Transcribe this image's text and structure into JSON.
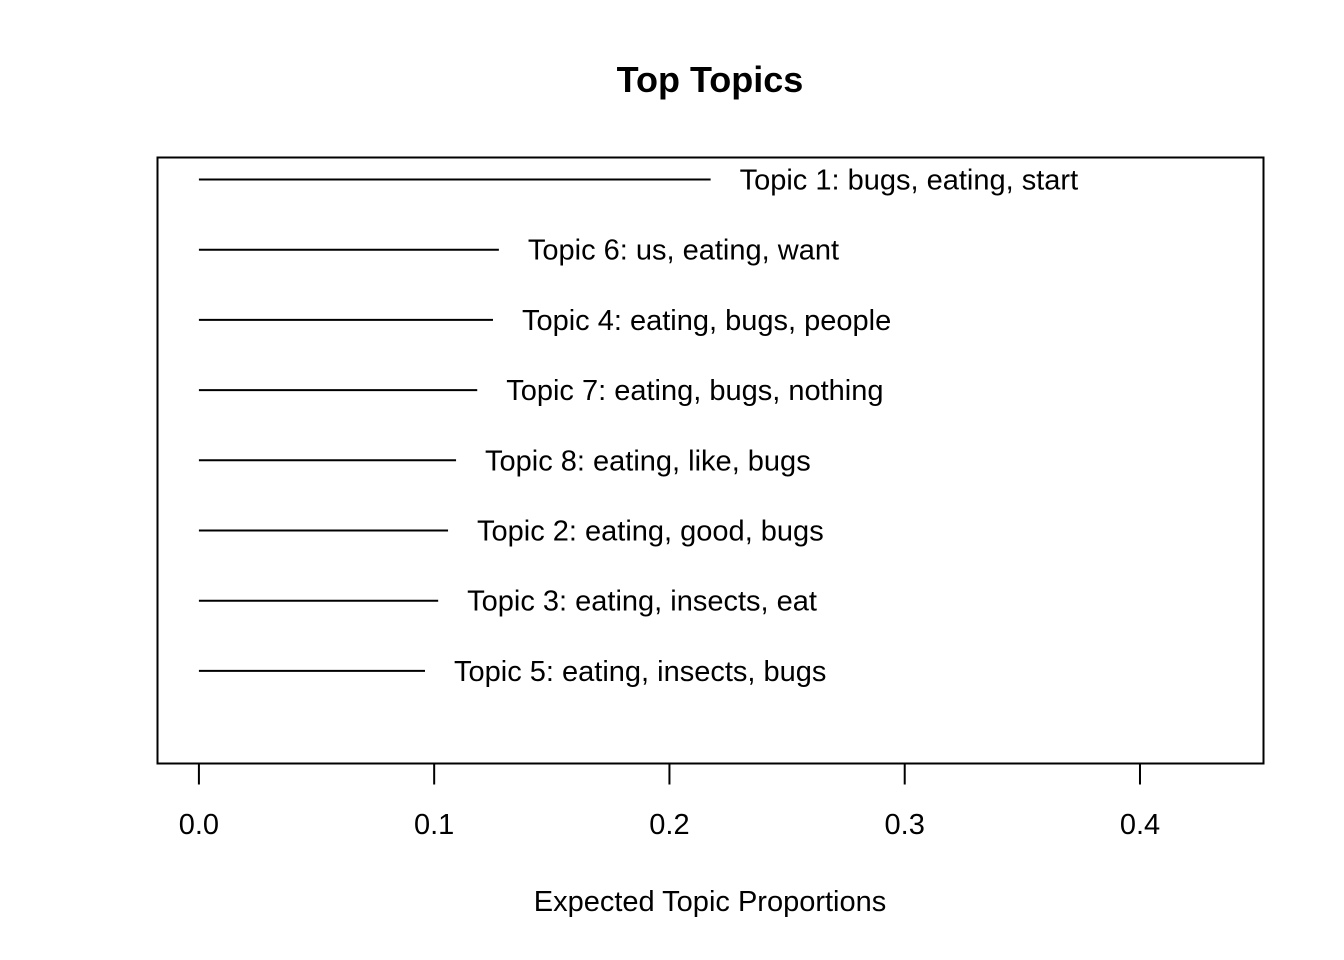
{
  "chart_data": {
    "type": "bar",
    "title": "Top Topics",
    "xlabel": "Expected Topic Proportions",
    "ylabel": "",
    "xlim": [
      -0.0176,
      0.4525
    ],
    "grid": false,
    "x_ticks": [
      "0.0",
      "0.1",
      "0.2",
      "0.3",
      "0.4"
    ],
    "categories": [
      "Topic 1: bugs, eating, start",
      "Topic 6: us, eating, want",
      "Topic 4: eating, bugs, people",
      "Topic 7: eating, bugs, nothing",
      "Topic 8: eating, like, bugs",
      "Topic 2: eating, good, bugs",
      "Topic 3: eating, insects, eat",
      "Topic 5: eating, insects, bugs"
    ],
    "values": [
      0.2175,
      0.1275,
      0.125,
      0.1183,
      0.1093,
      0.1059,
      0.1017,
      0.0961
    ],
    "colors": {
      "line": "#000000",
      "background": "#ffffff"
    }
  }
}
